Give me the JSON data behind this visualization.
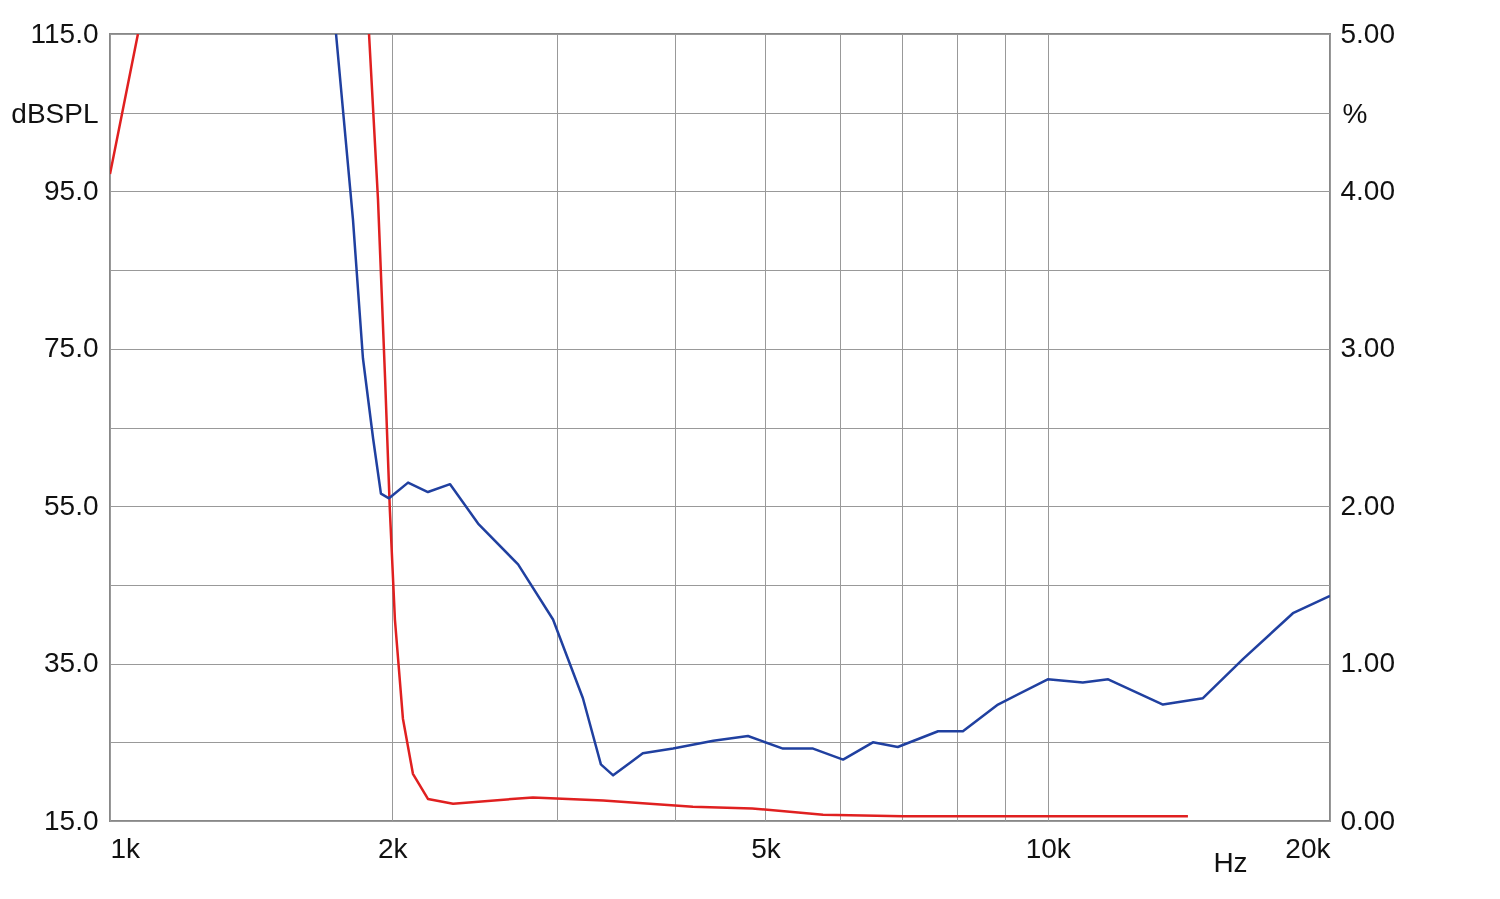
{
  "chart_data": {
    "type": "line",
    "xlabel": "Hz",
    "ylabel": "dBSPL",
    "y2label": "%",
    "log": "x",
    "grid": true,
    "line_style": "solid",
    "marker": "none",
    "xlim": [
      1000,
      20000
    ],
    "xticks": [
      {
        "value": 1000,
        "label": "1k"
      },
      {
        "value": 2000,
        "label": "2k"
      },
      {
        "value": 3000,
        "label": null
      },
      {
        "value": 4000,
        "label": null
      },
      {
        "value": 5000,
        "label": "5k"
      },
      {
        "value": 6000,
        "label": null
      },
      {
        "value": 7000,
        "label": null
      },
      {
        "value": 8000,
        "label": null
      },
      {
        "value": 9000,
        "label": null
      },
      {
        "value": 10000,
        "label": "10k"
      },
      {
        "value": 20000,
        "label": "20k"
      }
    ],
    "ylim": [
      15,
      115
    ],
    "yticks": [
      {
        "value": 15,
        "label": "15.0"
      },
      {
        "value": 25,
        "label": null
      },
      {
        "value": 35,
        "label": "35.0"
      },
      {
        "value": 45,
        "label": null
      },
      {
        "value": 55,
        "label": "55.0"
      },
      {
        "value": 65,
        "label": null
      },
      {
        "value": 75,
        "label": "75.0"
      },
      {
        "value": 85,
        "label": null
      },
      {
        "value": 95,
        "label": "95.0"
      },
      {
        "value": 105,
        "label": null
      },
      {
        "value": 115,
        "label": "115.0"
      }
    ],
    "y2lim": [
      0,
      5
    ],
    "y2ticks": [
      {
        "value": 0,
        "label": "0.00"
      },
      {
        "value": 1,
        "label": "1.00"
      },
      {
        "value": 2,
        "label": "2.00"
      },
      {
        "value": 3,
        "label": "3.00"
      },
      {
        "value": 4,
        "label": "4.00"
      },
      {
        "value": 5,
        "label": "5.00"
      }
    ],
    "series": [
      {
        "color": "#e02020",
        "axis": "y2",
        "x": [
          1000,
          1071,
          1500,
          1889,
          1931,
          1965,
          1988,
          2013,
          2053,
          2104,
          2183,
          2322,
          2825,
          3357,
          4184,
          4840,
          5760,
          7010,
          10130,
          14110
        ],
        "values": [
          4.11,
          5,
          null,
          5,
          3.95,
          2.81,
          1.98,
          1.28,
          0.65,
          0.3,
          0.14,
          0.11,
          0.15,
          0.13,
          0.09,
          0.08,
          0.04,
          0.03,
          0.03,
          0.03
        ]
      },
      {
        "color": "#2040a0",
        "axis": "y2",
        "x": [
          1742,
          1816,
          1861,
          1908,
          1945,
          1984,
          2079,
          2183,
          2305,
          2469,
          2724,
          2968,
          3194,
          3338,
          3440,
          3700,
          3985,
          4400,
          4790,
          5220,
          5620,
          6050,
          6510,
          6920,
          7640,
          8120,
          8850,
          10000,
          10900,
          11600,
          13270,
          14640,
          16160,
          18260,
          20000
        ],
        "values": [
          5,
          3.82,
          2.94,
          2.43,
          2.08,
          2.05,
          2.15,
          2.09,
          2.14,
          1.89,
          1.63,
          1.28,
          0.78,
          0.36,
          0.29,
          0.43,
          0.46,
          0.51,
          0.54,
          0.46,
          0.46,
          0.39,
          0.5,
          0.47,
          0.57,
          0.57,
          0.74,
          0.9,
          0.88,
          0.9,
          0.74,
          0.78,
          1.03,
          1.32,
          1.43
        ]
      }
    ]
  }
}
